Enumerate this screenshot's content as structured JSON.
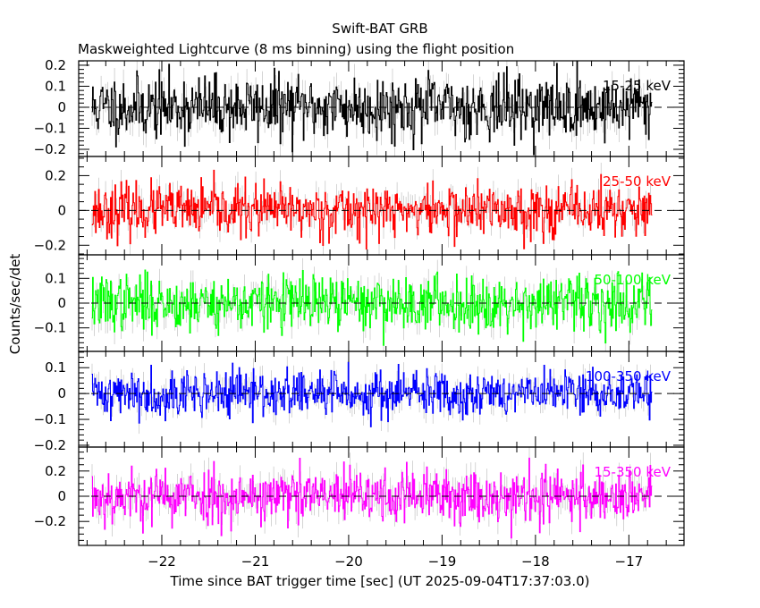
{
  "chart_data": {
    "type": "line",
    "title": "Swift-BAT GRB",
    "subtitle": "Maskweighted Lightcurve (8 ms binning) using the flight position",
    "xlabel": "Time since BAT trigger time [sec] (UT 2025-09-04T17:37:03.0)",
    "ylabel": "Counts/sec/det",
    "xlim": [
      -22.89,
      -16.41
    ],
    "x_ticks": [
      -22,
      -21,
      -20,
      -19,
      -18,
      -17
    ],
    "x_tick_labels": [
      "−22",
      "−21",
      "−20",
      "−19",
      "−18",
      "−17"
    ],
    "bin_size_sec": 0.008,
    "data_range": [
      -22.75,
      -16.75
    ],
    "grid": false,
    "series": [
      {
        "name": "15-25 keV",
        "color": "#000000",
        "ylim": [
          -0.234,
          0.221
        ],
        "y_ticks": [
          0.2,
          0.1,
          0,
          -0.1,
          -0.2
        ],
        "y_tick_labels": [
          "0.2",
          "0.1",
          "0",
          "−0.1",
          "−0.2"
        ],
        "noise_sigma": 0.075,
        "mean": 0,
        "seed": 11
      },
      {
        "name": "25-50 keV",
        "color": "#ff0000",
        "ylim": [
          -0.255,
          0.31
        ],
        "y_ticks": [
          0.2,
          0,
          -0.2
        ],
        "y_tick_labels": [
          "0.2",
          "0",
          "−0.2"
        ],
        "noise_sigma": 0.075,
        "mean": 0,
        "seed": 23
      },
      {
        "name": "50-100 keV",
        "color": "#00ff00",
        "ylim": [
          -0.195,
          0.195
        ],
        "y_ticks": [
          0.1,
          0,
          -0.1
        ],
        "y_tick_labels": [
          "0.1",
          "0",
          "−0.1"
        ],
        "noise_sigma": 0.055,
        "mean": 0,
        "seed": 37
      },
      {
        "name": "100-350 keV",
        "color": "#0000ff",
        "ylim": [
          -0.207,
          0.163
        ],
        "y_ticks": [
          0.1,
          0,
          -0.1,
          -0.2
        ],
        "y_tick_labels": [
          "0.1",
          "0",
          "−0.1",
          "−0.2"
        ],
        "noise_sigma": 0.045,
        "mean": 0,
        "seed": 41
      },
      {
        "name": "15-350 keV",
        "color": "#ff00ff",
        "ylim": [
          -0.39,
          0.39
        ],
        "y_ticks": [
          0.2,
          0,
          -0.2
        ],
        "y_tick_labels": [
          "0.2",
          "0",
          "−0.2"
        ],
        "noise_sigma": 0.11,
        "mean": 0,
        "seed": 53
      }
    ]
  }
}
